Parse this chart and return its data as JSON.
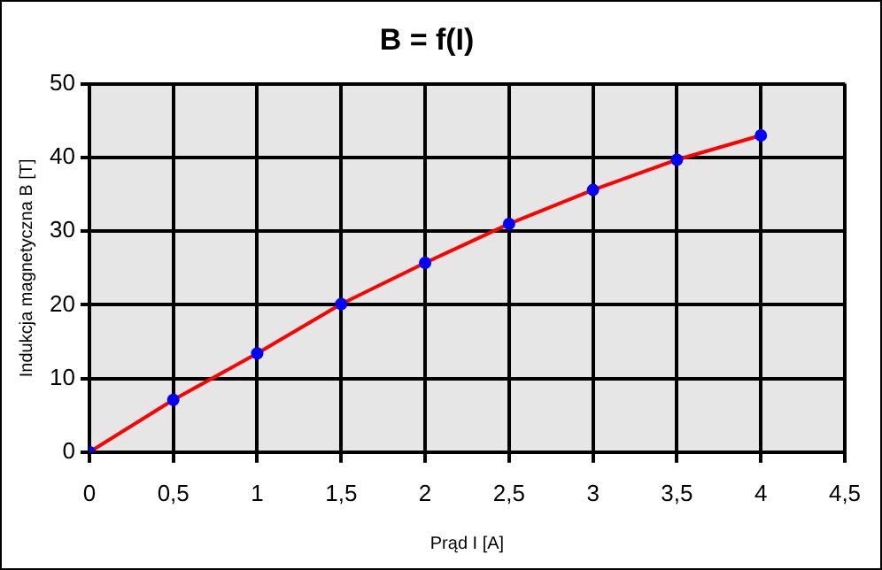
{
  "chart_data": {
    "type": "line",
    "title": "B = f(I)",
    "xlabel": "Prąd I [A]",
    "ylabel": "Indukcja magnetyczna B [T]",
    "x": [
      0,
      0.5,
      1,
      1.5,
      2,
      2.5,
      3,
      3.5,
      4
    ],
    "series": [
      {
        "color": "#ff0000",
        "colors": [
          "#0000ff",
          "#0000ff",
          "#0000ff",
          "#0000ff",
          "#0000ff",
          "#0000ff",
          "#0000ff",
          "#0000ff",
          "#0000ff"
        ],
        "values": [
          0,
          7.1,
          13.4,
          20.1,
          25.7,
          31,
          35.6,
          39.7,
          43
        ]
      }
    ],
    "xlim": [
      0,
      4.5
    ],
    "xticks": [
      0,
      {
        "value": 0.5,
        "label": "0,5"
      },
      1,
      {
        "value": 1.5,
        "label": "1,5"
      },
      2,
      {
        "value": 2.5,
        "label": "2,5"
      },
      3,
      {
        "value": 3.5,
        "label": "3,5"
      },
      4,
      {
        "value": 4.5,
        "label": "4,5"
      }
    ],
    "ylim": [
      0,
      50
    ],
    "yticks": [
      0,
      10,
      20,
      30,
      40,
      50
    ],
    "grid": true,
    "legend": false,
    "marker": "circle",
    "line_style": "solid"
  }
}
